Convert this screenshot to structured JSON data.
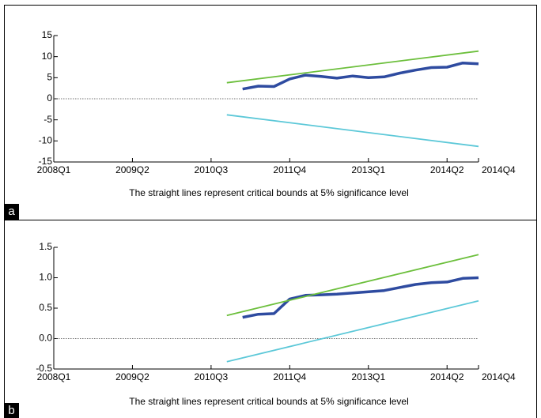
{
  "chart_data": [
    {
      "type": "line",
      "panel_label": "a",
      "caption": "The straight lines represent critical bounds at 5% significance level",
      "xlim": [
        "2008Q1",
        "2014Q4"
      ],
      "xticks": [
        "2008Q1",
        "2009Q2",
        "2010Q3",
        "2011Q4",
        "2013Q1",
        "2014Q2",
        "2014Q4"
      ],
      "ylim": [
        -15,
        15
      ],
      "yticks": [
        15,
        10,
        5,
        0,
        -5,
        -10,
        -15
      ],
      "zero_line": true,
      "series": [
        {
          "color": "#2e4ba0",
          "width": 3.5,
          "x": [
            "2011Q1",
            "2011Q2",
            "2011Q3",
            "2011Q4",
            "2012Q1",
            "2012Q2",
            "2012Q3",
            "2012Q4",
            "2013Q1",
            "2013Q2",
            "2013Q3",
            "2013Q4",
            "2014Q1",
            "2014Q2",
            "2014Q3",
            "2014Q4"
          ],
          "values": [
            2.3,
            3.0,
            2.9,
            4.7,
            5.6,
            5.3,
            4.9,
            5.4,
            5.0,
            5.2,
            6.1,
            6.8,
            7.4,
            7.5,
            8.5,
            8.3
          ]
        },
        {
          "color": "#6cbf3c",
          "width": 1.8,
          "x": [
            "2010Q4",
            "2014Q4"
          ],
          "values": [
            3.8,
            11.3
          ]
        },
        {
          "color": "#5cc8d8",
          "width": 1.8,
          "x": [
            "2010Q4",
            "2014Q4"
          ],
          "values": [
            -3.8,
            -11.3
          ]
        }
      ]
    },
    {
      "type": "line",
      "panel_label": "b",
      "caption": "The straight lines represent critical bounds at 5% significance level",
      "xlim": [
        "2008Q1",
        "2014Q4"
      ],
      "xticks": [
        "2008Q1",
        "2009Q2",
        "2010Q3",
        "2011Q4",
        "2013Q1",
        "2014Q2",
        "2014Q4"
      ],
      "ylim": [
        -0.5,
        1.5
      ],
      "yticks": [
        1.5,
        {
          "value": 1,
          "label": "1.0"
        },
        0.5,
        {
          "value": 0,
          "label": "0.0"
        },
        -0.5
      ],
      "zero_line": true,
      "series": [
        {
          "color": "#2e4ba0",
          "width": 3.5,
          "x": [
            "2011Q1",
            "2011Q2",
            "2011Q3",
            "2011Q4",
            "2012Q1",
            "2012Q2",
            "2012Q3",
            "2012Q4",
            "2013Q1",
            "2013Q2",
            "2013Q3",
            "2013Q4",
            "2014Q1",
            "2014Q2",
            "2014Q3",
            "2014Q4"
          ],
          "values": [
            0.35,
            0.4,
            0.41,
            0.65,
            0.71,
            0.72,
            0.73,
            0.75,
            0.77,
            0.79,
            0.84,
            0.89,
            0.92,
            0.93,
            0.99,
            1.0
          ]
        },
        {
          "color": "#6cbf3c",
          "width": 1.8,
          "x": [
            "2010Q4",
            "2014Q4"
          ],
          "values": [
            0.38,
            1.38
          ]
        },
        {
          "color": "#5cc8d8",
          "width": 1.8,
          "x": [
            "2010Q4",
            "2014Q4"
          ],
          "values": [
            -0.38,
            0.62
          ]
        }
      ]
    }
  ]
}
